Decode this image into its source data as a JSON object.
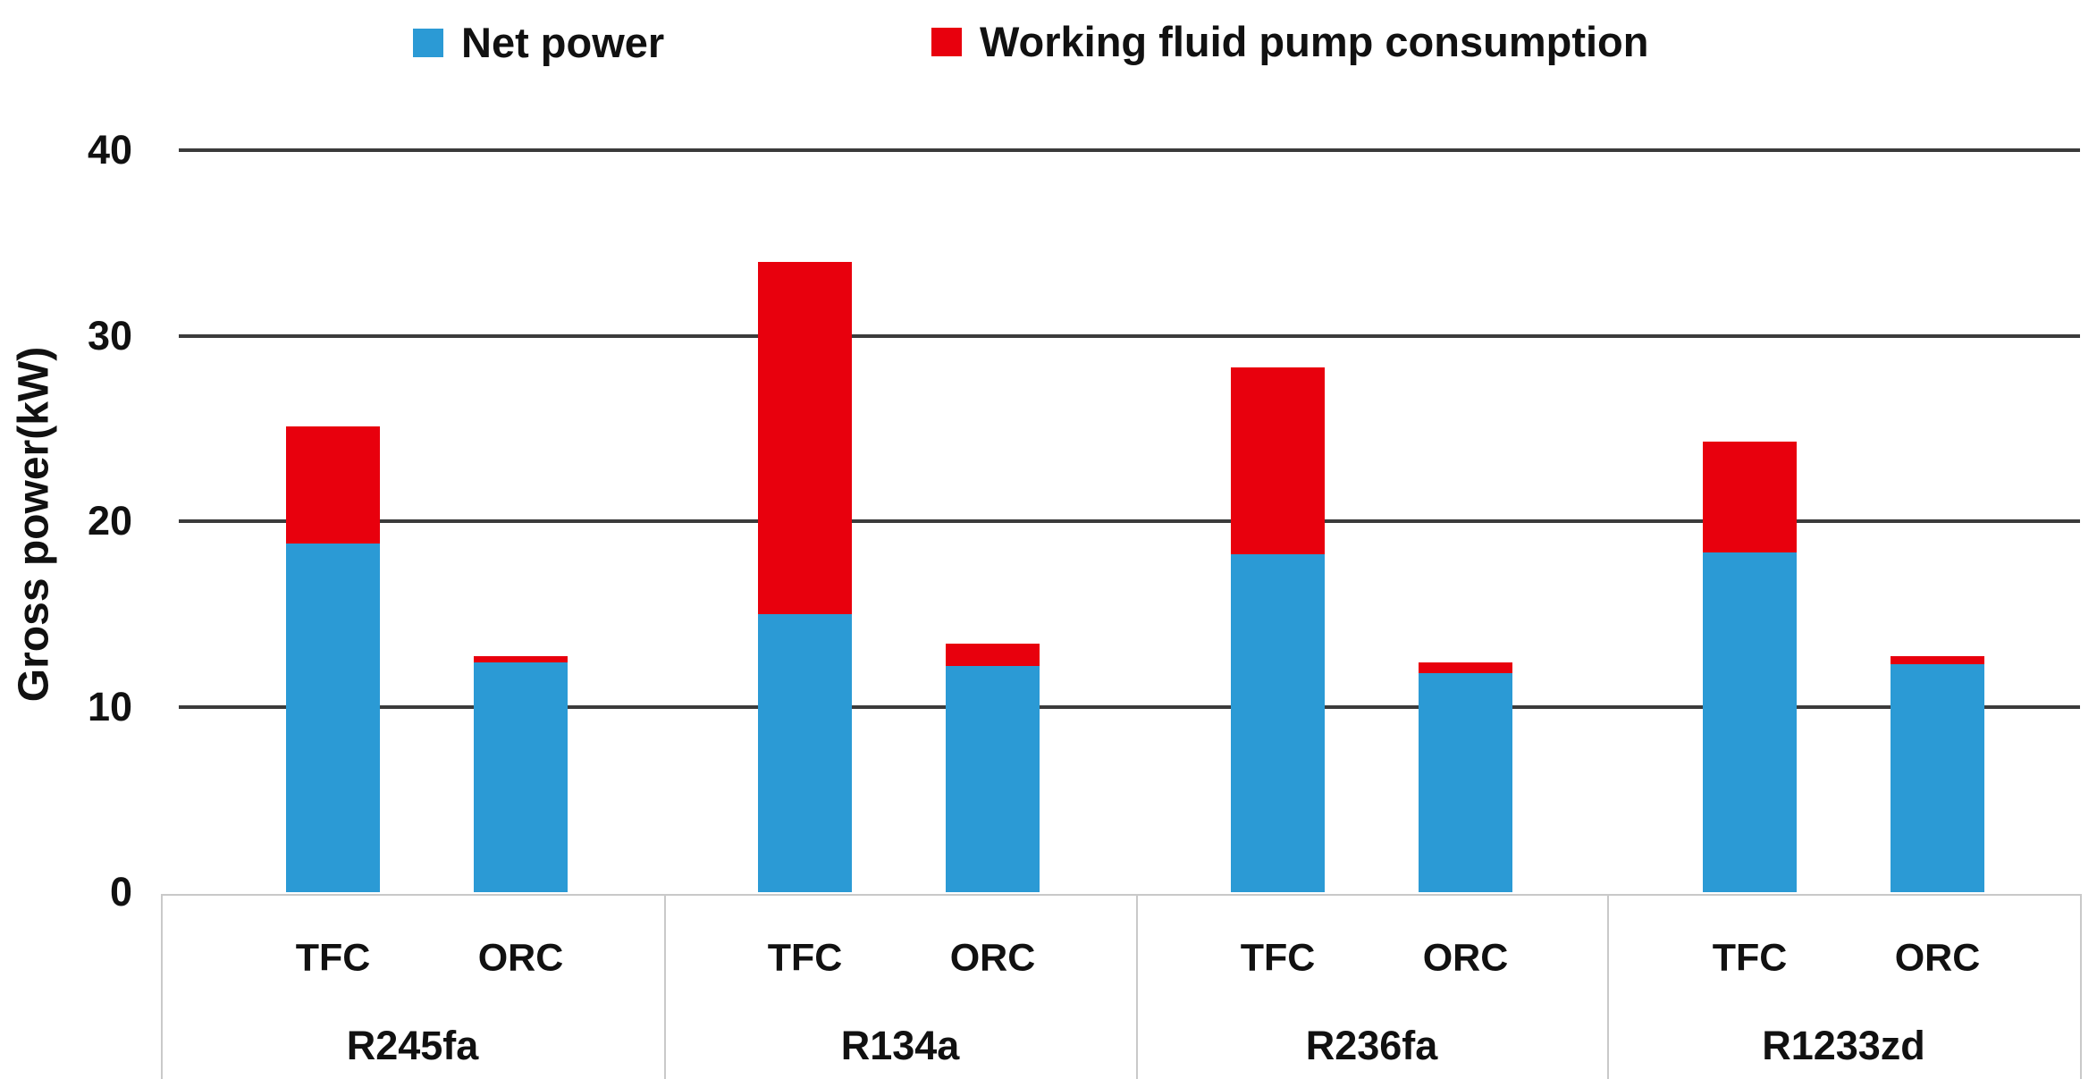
{
  "chart_data": {
    "type": "bar",
    "stacked": true,
    "title": "",
    "ylabel": "Gross power(kW)",
    "xlabel": "",
    "ylim": [
      0,
      40
    ],
    "yticks": [
      0,
      10,
      20,
      30,
      40
    ],
    "gridlines": true,
    "legend_position": "top",
    "series": [
      {
        "name": "Net power",
        "color": "#2B9AD5"
      },
      {
        "name": "Working fluid pump consumption",
        "color": "#E8000D"
      }
    ],
    "groups": [
      {
        "name": "R245fa",
        "bars": [
          {
            "cycle": "TFC",
            "net_power_kw": 18.8,
            "pump_consumption_kw": 6.3,
            "total_kw": 25.1
          },
          {
            "cycle": "ORC",
            "net_power_kw": 12.4,
            "pump_consumption_kw": 0.3,
            "total_kw": 12.7
          }
        ]
      },
      {
        "name": "R134a",
        "bars": [
          {
            "cycle": "TFC",
            "net_power_kw": 15.0,
            "pump_consumption_kw": 19.0,
            "total_kw": 34.0
          },
          {
            "cycle": "ORC",
            "net_power_kw": 12.2,
            "pump_consumption_kw": 1.2,
            "total_kw": 13.4
          }
        ]
      },
      {
        "name": "R236fa",
        "bars": [
          {
            "cycle": "TFC",
            "net_power_kw": 18.2,
            "pump_consumption_kw": 10.1,
            "total_kw": 28.3
          },
          {
            "cycle": "ORC",
            "net_power_kw": 11.8,
            "pump_consumption_kw": 0.6,
            "total_kw": 12.4
          }
        ]
      },
      {
        "name": "R1233zd",
        "bars": [
          {
            "cycle": "TFC",
            "net_power_kw": 18.3,
            "pump_consumption_kw": 6.0,
            "total_kw": 24.3
          },
          {
            "cycle": "ORC",
            "net_power_kw": 12.3,
            "pump_consumption_kw": 0.4,
            "total_kw": 12.7
          }
        ]
      }
    ]
  },
  "legend": {
    "items": [
      {
        "label": "Net power",
        "color": "#2B9AD5"
      },
      {
        "label": "Working fluid pump consumption",
        "color": "#E8000D"
      }
    ]
  },
  "axis": {
    "y_title": "Gross power(kW)"
  }
}
